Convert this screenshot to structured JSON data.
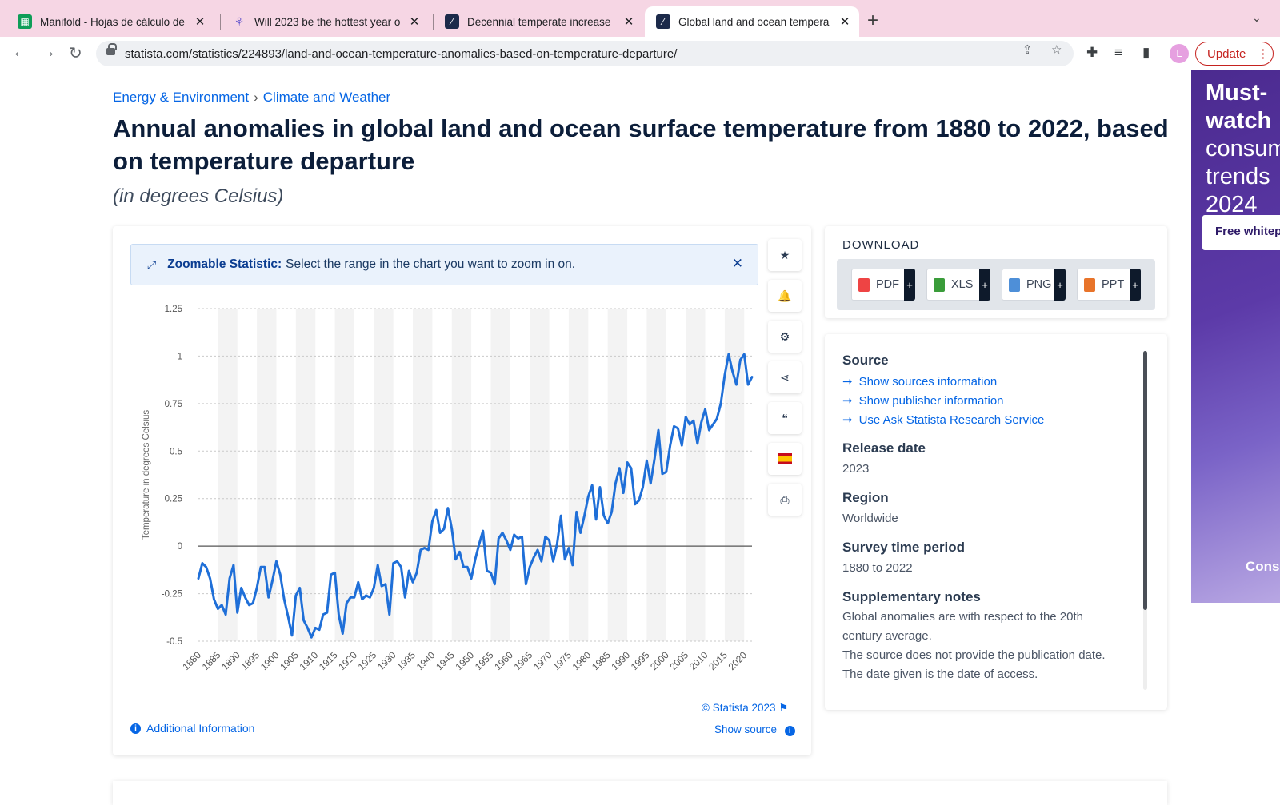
{
  "browser": {
    "tabs": [
      {
        "title": "Manifold - Hojas de cálculo de",
        "icon": "sheets-icon"
      },
      {
        "title": "Will 2023 be the hottest year o",
        "icon": "manifold-icon"
      },
      {
        "title": "Decennial temperate increase",
        "icon": "statista-icon"
      },
      {
        "title": "Global land and ocean tempera",
        "icon": "statista-icon"
      }
    ],
    "url": "statista.com/statistics/224893/land-and-ocean-temperature-anomalies-based-on-temperature-departure/",
    "update_label": "Update",
    "profile_initial": "L"
  },
  "breadcrumb": [
    "Energy & Environment",
    "Climate and Weather"
  ],
  "page": {
    "title": "Annual anomalies in global land and ocean surface temperature from 1880 to 2022, based on temperature departure",
    "subtitle": "(in degrees Celsius)"
  },
  "zoom_banner": {
    "bold": "Zoomable Statistic:",
    "text": "Select the range in the chart you want to zoom in on."
  },
  "chart_footer": {
    "copyright": "© Statista 2023",
    "show_source": "Show source",
    "additional_info": "Additional Information"
  },
  "download": {
    "heading": "DOWNLOAD",
    "formats": [
      "PDF",
      "XLS",
      "PNG",
      "PPT"
    ]
  },
  "info": {
    "source_heading": "Source",
    "links": [
      "Show sources information",
      "Show publisher information",
      "Use Ask Statista Research Service"
    ],
    "release_heading": "Release date",
    "release_value": "2023",
    "region_heading": "Region",
    "region_value": "Worldwide",
    "period_heading": "Survey time period",
    "period_value": "1880 to 2022",
    "notes_heading": "Supplementary notes",
    "notes_1": "Global anomalies are with respect to the 20th",
    "notes_2": "century average.",
    "notes_3": "The source does not provide the publication date.",
    "notes_4": "The date given is the date of access."
  },
  "ad": {
    "line1": "Must-",
    "line2": "watch",
    "line3": "consum",
    "line4": "trends",
    "line5": "2024",
    "button": "Free whitep",
    "corner": "Cons"
  },
  "colors": {
    "accent": "#0666e5",
    "line": "#1f6fd8",
    "title": "#0c1e3a"
  },
  "chart_data": {
    "type": "line",
    "ylabel": "Temperature in degrees Celsius",
    "xlabel": "",
    "ylim": [
      -0.5,
      1.25
    ],
    "yticks": [
      "1.25",
      "1",
      "0.75",
      "0.5",
      "0.25",
      "0",
      "-0.25",
      "-0.5"
    ],
    "xticks": [
      "1880",
      "1885",
      "1890",
      "1895",
      "1900",
      "1905",
      "1910",
      "1915",
      "1920",
      "1925",
      "1930",
      "1935",
      "1940",
      "1945",
      "1950",
      "1955",
      "1960",
      "1965",
      "1970",
      "1975",
      "1980",
      "1985",
      "1990",
      "1995",
      "2000",
      "2005",
      "2010",
      "2015",
      "2020"
    ],
    "x_start": 1880,
    "series": [
      {
        "values": [
          -0.17,
          -0.09,
          -0.11,
          -0.17,
          -0.28,
          -0.33,
          -0.31,
          -0.36,
          -0.17,
          -0.1,
          -0.35,
          -0.22,
          -0.27,
          -0.31,
          -0.3,
          -0.22,
          -0.11,
          -0.11,
          -0.27,
          -0.18,
          -0.08,
          -0.15,
          -0.28,
          -0.37,
          -0.47,
          -0.26,
          -0.22,
          -0.39,
          -0.43,
          -0.48,
          -0.43,
          -0.44,
          -0.36,
          -0.35,
          -0.15,
          -0.14,
          -0.36,
          -0.46,
          -0.3,
          -0.27,
          -0.27,
          -0.19,
          -0.28,
          -0.26,
          -0.27,
          -0.22,
          -0.1,
          -0.21,
          -0.2,
          -0.36,
          -0.09,
          -0.08,
          -0.11,
          -0.27,
          -0.13,
          -0.19,
          -0.14,
          -0.02,
          -0.01,
          -0.02,
          0.13,
          0.19,
          0.07,
          0.09,
          0.2,
          0.09,
          -0.07,
          -0.03,
          -0.11,
          -0.11,
          -0.17,
          -0.07,
          0.01,
          0.08,
          -0.13,
          -0.14,
          -0.2,
          0.04,
          0.07,
          0.03,
          -0.02,
          0.06,
          0.04,
          0.05,
          -0.2,
          -0.11,
          -0.06,
          -0.02,
          -0.08,
          0.05,
          0.03,
          -0.08,
          0.01,
          0.16,
          -0.07,
          -0.01,
          -0.1,
          0.18,
          0.07,
          0.16,
          0.26,
          0.32,
          0.14,
          0.31,
          0.16,
          0.12,
          0.18,
          0.33,
          0.41,
          0.28,
          0.44,
          0.41,
          0.22,
          0.24,
          0.31,
          0.45,
          0.33,
          0.46,
          0.61,
          0.38,
          0.39,
          0.53,
          0.63,
          0.62,
          0.53,
          0.68,
          0.64,
          0.66,
          0.54,
          0.65,
          0.72,
          0.61,
          0.64,
          0.67,
          0.75,
          0.9,
          1.01,
          0.92,
          0.85,
          0.98,
          1.01,
          0.85,
          0.89
        ]
      }
    ]
  }
}
